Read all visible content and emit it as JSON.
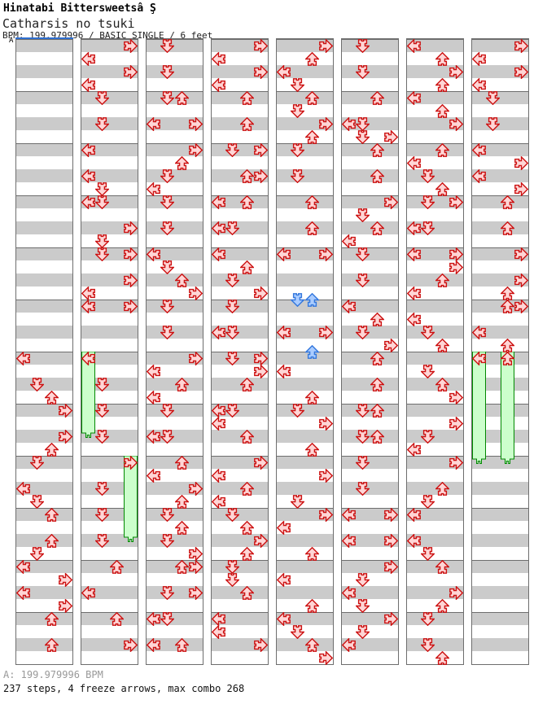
{
  "header": {
    "title": "Hinatabi Bittersweetsâ Ş",
    "song": "Catharsis no tsuki",
    "meta": "BPM: 199.979996 / BASIC SINGLE / 6 feet"
  },
  "section": {
    "label": "A"
  },
  "footer": {
    "bpm": "A: 199.979996 BPM",
    "stats": "237 steps, 4 freeze arrows, max combo 268"
  },
  "colors": {
    "note_fill": "#ffd6d6",
    "note_border": "#cc1111",
    "blue_fill": "#aaccff",
    "blue_border": "#3377dd",
    "freeze_fill": "#ccffcc",
    "freeze_border": "#008800",
    "stripe": "#cbcbcb",
    "grid": "#6e6e6e",
    "section_line": "#2f6fd0"
  },
  "chart": {
    "columns": [
      {
        "a": [
          [
            432,
            "L"
          ],
          [
            464,
            "D"
          ],
          [
            480,
            "U"
          ],
          [
            496,
            "R"
          ],
          [
            528,
            "R"
          ],
          [
            544,
            "U"
          ],
          [
            560,
            "D"
          ],
          [
            592,
            "L"
          ],
          [
            608,
            "D"
          ],
          [
            624,
            "U"
          ],
          [
            656,
            "U"
          ],
          [
            672,
            "D"
          ],
          [
            688,
            "L"
          ],
          [
            704,
            "R"
          ],
          [
            720,
            "L"
          ],
          [
            736,
            "R"
          ],
          [
            752,
            "U"
          ],
          [
            784,
            "U"
          ]
        ],
        "f": []
      },
      {
        "a": [
          [
            48,
            "R"
          ],
          [
            64,
            "L"
          ],
          [
            80,
            "R"
          ],
          [
            96,
            "L"
          ],
          [
            112,
            "D"
          ],
          [
            144,
            "D"
          ],
          [
            176,
            "L"
          ],
          [
            208,
            "L"
          ],
          [
            224,
            "D"
          ],
          [
            240,
            "L"
          ],
          [
            240,
            "D"
          ],
          [
            272,
            "R"
          ],
          [
            288,
            "D"
          ],
          [
            304,
            "D"
          ],
          [
            304,
            "R"
          ],
          [
            336,
            "R"
          ],
          [
            352,
            "L"
          ],
          [
            368,
            "L"
          ],
          [
            368,
            "R"
          ],
          [
            432,
            "L"
          ],
          [
            464,
            "D"
          ],
          [
            496,
            "D"
          ],
          [
            528,
            "D"
          ],
          [
            560,
            "R"
          ],
          [
            592,
            "D"
          ],
          [
            624,
            "D"
          ],
          [
            656,
            "D"
          ],
          [
            688,
            "U"
          ],
          [
            720,
            "L"
          ],
          [
            752,
            "U"
          ],
          [
            784,
            "R"
          ]
        ],
        "f": [
          [
            "L",
            432,
            538
          ],
          [
            "R",
            560,
            666
          ]
        ]
      },
      {
        "a": [
          [
            48,
            "D"
          ],
          [
            80,
            "D"
          ],
          [
            112,
            "D"
          ],
          [
            112,
            "U"
          ],
          [
            144,
            "L"
          ],
          [
            144,
            "R"
          ],
          [
            176,
            "R"
          ],
          [
            192,
            "U"
          ],
          [
            208,
            "D"
          ],
          [
            224,
            "L"
          ],
          [
            240,
            "D"
          ],
          [
            272,
            "D"
          ],
          [
            304,
            "L"
          ],
          [
            320,
            "D"
          ],
          [
            336,
            "U"
          ],
          [
            352,
            "R"
          ],
          [
            368,
            "D"
          ],
          [
            400,
            "D"
          ],
          [
            432,
            "R"
          ],
          [
            448,
            "L"
          ],
          [
            464,
            "U"
          ],
          [
            480,
            "L"
          ],
          [
            496,
            "D"
          ],
          [
            528,
            "L"
          ],
          [
            528,
            "D"
          ],
          [
            560,
            "U"
          ],
          [
            576,
            "L"
          ],
          [
            592,
            "R"
          ],
          [
            608,
            "U"
          ],
          [
            624,
            "D"
          ],
          [
            640,
            "U"
          ],
          [
            656,
            "D"
          ],
          [
            672,
            "R"
          ],
          [
            688,
            "U"
          ],
          [
            688,
            "R"
          ],
          [
            720,
            "D"
          ],
          [
            720,
            "R"
          ],
          [
            752,
            "L"
          ],
          [
            752,
            "D"
          ],
          [
            784,
            "L"
          ],
          [
            784,
            "U"
          ]
        ],
        "f": []
      },
      {
        "a": [
          [
            48,
            "R"
          ],
          [
            64,
            "L"
          ],
          [
            80,
            "R"
          ],
          [
            96,
            "L"
          ],
          [
            112,
            "U"
          ],
          [
            144,
            "U"
          ],
          [
            176,
            "D"
          ],
          [
            176,
            "R"
          ],
          [
            208,
            "U"
          ],
          [
            208,
            "R"
          ],
          [
            240,
            "L"
          ],
          [
            240,
            "U"
          ],
          [
            272,
            "L"
          ],
          [
            272,
            "D"
          ],
          [
            304,
            "L"
          ],
          [
            320,
            "U"
          ],
          [
            336,
            "D"
          ],
          [
            352,
            "R"
          ],
          [
            368,
            "D"
          ],
          [
            400,
            "L"
          ],
          [
            400,
            "D"
          ],
          [
            432,
            "D"
          ],
          [
            432,
            "R"
          ],
          [
            448,
            "R"
          ],
          [
            464,
            "U"
          ],
          [
            496,
            "L"
          ],
          [
            496,
            "D"
          ],
          [
            512,
            "L"
          ],
          [
            528,
            "U"
          ],
          [
            560,
            "R"
          ],
          [
            576,
            "L"
          ],
          [
            592,
            "U"
          ],
          [
            608,
            "L"
          ],
          [
            624,
            "D"
          ],
          [
            640,
            "U"
          ],
          [
            656,
            "R"
          ],
          [
            672,
            "U"
          ],
          [
            688,
            "D"
          ],
          [
            704,
            "D"
          ],
          [
            720,
            "U"
          ],
          [
            752,
            "L"
          ],
          [
            768,
            "L"
          ],
          [
            784,
            "R"
          ]
        ],
        "f": []
      },
      {
        "a": [
          [
            48,
            "R"
          ],
          [
            64,
            "U"
          ],
          [
            80,
            "L"
          ],
          [
            96,
            "D"
          ],
          [
            112,
            "U"
          ],
          [
            128,
            "D"
          ],
          [
            144,
            "R"
          ],
          [
            160,
            "U"
          ],
          [
            176,
            "D"
          ],
          [
            208,
            "D"
          ],
          [
            240,
            "U"
          ],
          [
            272,
            "U"
          ],
          [
            304,
            "L"
          ],
          [
            304,
            "R"
          ],
          [
            360,
            "D",
            "b"
          ],
          [
            360,
            "U",
            "b"
          ],
          [
            400,
            "L"
          ],
          [
            400,
            "R"
          ],
          [
            424,
            "U",
            "b"
          ],
          [
            448,
            "L"
          ],
          [
            480,
            "U"
          ],
          [
            496,
            "D"
          ],
          [
            512,
            "R"
          ],
          [
            544,
            "U"
          ],
          [
            576,
            "R"
          ],
          [
            608,
            "D"
          ],
          [
            624,
            "R"
          ],
          [
            640,
            "L"
          ],
          [
            672,
            "U"
          ],
          [
            704,
            "L"
          ],
          [
            736,
            "U"
          ],
          [
            752,
            "L"
          ],
          [
            768,
            "D"
          ],
          [
            784,
            "U"
          ],
          [
            800,
            "R"
          ]
        ],
        "f": []
      },
      {
        "a": [
          [
            48,
            "D"
          ],
          [
            80,
            "D"
          ],
          [
            112,
            "U"
          ],
          [
            144,
            "L"
          ],
          [
            144,
            "D"
          ],
          [
            160,
            "D"
          ],
          [
            160,
            "R"
          ],
          [
            176,
            "U"
          ],
          [
            208,
            "U"
          ],
          [
            240,
            "R"
          ],
          [
            256,
            "D"
          ],
          [
            272,
            "U"
          ],
          [
            288,
            "L"
          ],
          [
            304,
            "D"
          ],
          [
            336,
            "D"
          ],
          [
            368,
            "L"
          ],
          [
            384,
            "U"
          ],
          [
            400,
            "D"
          ],
          [
            416,
            "R"
          ],
          [
            432,
            "U"
          ],
          [
            464,
            "U"
          ],
          [
            496,
            "D"
          ],
          [
            496,
            "U"
          ],
          [
            528,
            "D"
          ],
          [
            528,
            "U"
          ],
          [
            560,
            "D"
          ],
          [
            592,
            "D"
          ],
          [
            624,
            "L"
          ],
          [
            624,
            "R"
          ],
          [
            656,
            "L"
          ],
          [
            656,
            "R"
          ],
          [
            688,
            "R"
          ],
          [
            704,
            "D"
          ],
          [
            720,
            "L"
          ],
          [
            736,
            "D"
          ],
          [
            752,
            "R"
          ],
          [
            768,
            "D"
          ],
          [
            784,
            "L"
          ]
        ],
        "f": []
      },
      {
        "a": [
          [
            48,
            "L"
          ],
          [
            64,
            "U"
          ],
          [
            80,
            "R"
          ],
          [
            96,
            "U"
          ],
          [
            112,
            "L"
          ],
          [
            128,
            "U"
          ],
          [
            144,
            "R"
          ],
          [
            176,
            "U"
          ],
          [
            192,
            "L"
          ],
          [
            208,
            "D"
          ],
          [
            224,
            "U"
          ],
          [
            240,
            "D"
          ],
          [
            240,
            "R"
          ],
          [
            272,
            "L"
          ],
          [
            272,
            "D"
          ],
          [
            304,
            "L"
          ],
          [
            304,
            "R"
          ],
          [
            320,
            "R"
          ],
          [
            336,
            "U"
          ],
          [
            352,
            "L"
          ],
          [
            384,
            "L"
          ],
          [
            400,
            "D"
          ],
          [
            416,
            "U"
          ],
          [
            448,
            "D"
          ],
          [
            464,
            "U"
          ],
          [
            480,
            "R"
          ],
          [
            512,
            "R"
          ],
          [
            528,
            "D"
          ],
          [
            544,
            "L"
          ],
          [
            560,
            "R"
          ],
          [
            592,
            "U"
          ],
          [
            608,
            "D"
          ],
          [
            624,
            "L"
          ],
          [
            656,
            "L"
          ],
          [
            672,
            "D"
          ],
          [
            688,
            "U"
          ],
          [
            720,
            "R"
          ],
          [
            736,
            "U"
          ],
          [
            752,
            "D"
          ],
          [
            784,
            "D"
          ],
          [
            800,
            "U"
          ]
        ],
        "f": []
      },
      {
        "a": [
          [
            48,
            "R"
          ],
          [
            64,
            "L"
          ],
          [
            80,
            "R"
          ],
          [
            96,
            "L"
          ],
          [
            112,
            "D"
          ],
          [
            144,
            "D"
          ],
          [
            176,
            "L"
          ],
          [
            192,
            "R"
          ],
          [
            208,
            "L"
          ],
          [
            224,
            "R"
          ],
          [
            240,
            "U"
          ],
          [
            272,
            "U"
          ],
          [
            304,
            "R"
          ],
          [
            336,
            "R"
          ],
          [
            352,
            "U"
          ],
          [
            368,
            "U"
          ],
          [
            368,
            "R"
          ],
          [
            400,
            "L"
          ],
          [
            416,
            "U"
          ],
          [
            432,
            "L"
          ],
          [
            432,
            "U"
          ]
        ],
        "f": [
          [
            "L",
            432,
            570
          ],
          [
            "U",
            432,
            570
          ]
        ]
      }
    ]
  }
}
